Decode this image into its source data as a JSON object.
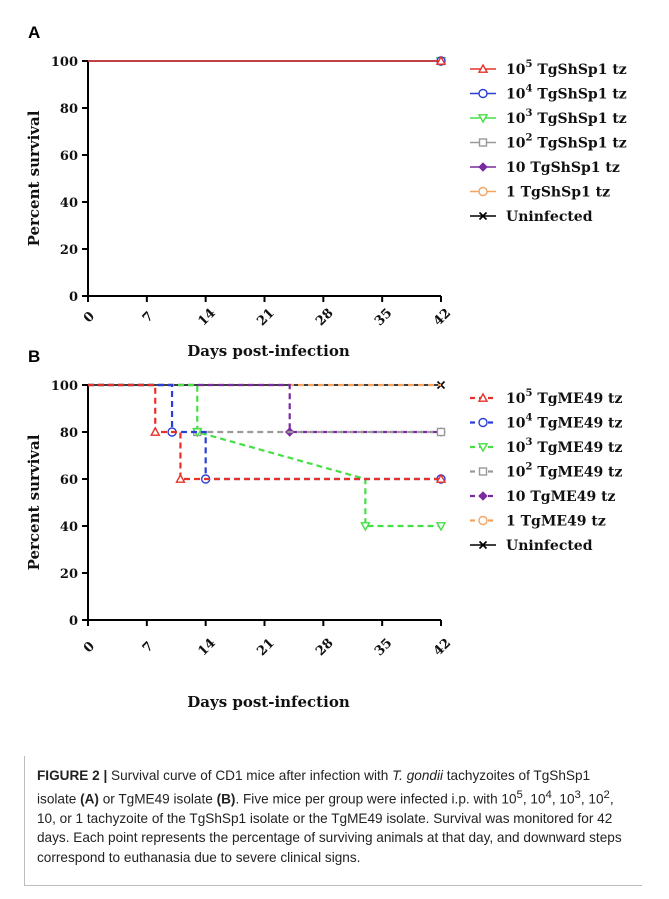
{
  "chart_data": [
    {
      "type": "line",
      "panel_label": "A",
      "xlabel": "Days post-infection",
      "ylabel": "Percent survival",
      "xlim": [
        0,
        42
      ],
      "ylim": [
        0,
        100
      ],
      "xticks": [
        0,
        7,
        14,
        21,
        28,
        35,
        42
      ],
      "yticks": [
        0,
        20,
        40,
        60,
        80,
        100
      ],
      "legend_position": "right",
      "series": [
        {
          "name": "TgShSp1 tz",
          "exp": "5",
          "color": "#e8302a",
          "marker": "triangle-up",
          "dashed": false,
          "points": [
            [
              0,
              100
            ],
            [
              42,
              100
            ]
          ],
          "steps": [],
          "markers": [
            [
              42,
              100
            ]
          ]
        },
        {
          "name": "TgShSp1 tz",
          "exp": "4",
          "color": "#2a3fd8",
          "marker": "circle",
          "dashed": false,
          "points": [
            [
              0,
              100
            ],
            [
              42,
              100
            ]
          ],
          "steps": [],
          "markers": [
            [
              42,
              100
            ]
          ]
        },
        {
          "name": "TgShSp1 tz",
          "exp": "3",
          "color": "#46e046",
          "marker": "triangle-down",
          "dashed": false,
          "points": [
            [
              0,
              100
            ],
            [
              42,
              100
            ]
          ],
          "steps": [],
          "markers": [
            [
              42,
              100
            ]
          ]
        },
        {
          "name": "TgShSp1 tz",
          "exp": "2",
          "color": "#9a9a9a",
          "marker": "square",
          "dashed": false,
          "points": [
            [
              0,
              100
            ],
            [
              42,
              100
            ]
          ],
          "steps": [],
          "markers": [
            [
              42,
              100
            ]
          ]
        },
        {
          "name": "10 TgShSp1 tz",
          "exp": "",
          "color": "#7a2aa0",
          "marker": "diamond",
          "dashed": false,
          "points": [
            [
              0,
              100
            ],
            [
              42,
              100
            ]
          ],
          "steps": [],
          "markers": [
            [
              42,
              100
            ]
          ]
        },
        {
          "name": "1 TgShSp1 tz",
          "exp": "",
          "color": "#f4a460",
          "marker": "hexagon",
          "dashed": false,
          "points": [
            [
              0,
              100
            ],
            [
              42,
              100
            ]
          ],
          "steps": [],
          "markers": [
            [
              42,
              100
            ]
          ]
        },
        {
          "name": "Uninfected",
          "exp": "",
          "color": "#000000",
          "marker": "x",
          "dashed": false,
          "points": [
            [
              0,
              100
            ],
            [
              42,
              100
            ]
          ],
          "steps": [],
          "markers": [
            [
              42,
              100
            ]
          ]
        }
      ]
    },
    {
      "type": "line",
      "panel_label": "B",
      "xlabel": "Days post-infection",
      "ylabel": "Percent survival",
      "xlim": [
        0,
        42
      ],
      "ylim": [
        0,
        100
      ],
      "xticks": [
        0,
        7,
        14,
        21,
        28,
        35,
        42
      ],
      "yticks": [
        0,
        20,
        40,
        60,
        80,
        100
      ],
      "legend_position": "right",
      "series": [
        {
          "name": "TgME49 tz",
          "exp": "5",
          "color": "#e8302a",
          "marker": "triangle-up",
          "dashed": true,
          "points": [
            [
              8,
              80
            ],
            [
              11,
              60
            ],
            [
              42,
              60
            ]
          ],
          "steps": [
            [
              8,
              100,
              80
            ],
            [
              11,
              80,
              60
            ]
          ],
          "markers": [
            [
              8,
              80
            ],
            [
              11,
              60
            ],
            [
              42,
              60
            ]
          ]
        },
        {
          "name": "TgME49 tz",
          "exp": "4",
          "color": "#2a3fd8",
          "marker": "circle",
          "dashed": true,
          "points": [
            [
              10,
              80
            ],
            [
              14,
              60
            ],
            [
              42,
              60
            ]
          ],
          "steps": [
            [
              10,
              100,
              80
            ],
            [
              14,
              80,
              60
            ]
          ],
          "markers": [
            [
              10,
              80
            ],
            [
              14,
              60
            ],
            [
              42,
              60
            ]
          ]
        },
        {
          "name": "TgME49 tz",
          "exp": "3",
          "color": "#46e046",
          "marker": "triangle-down",
          "dashed": true,
          "points": [
            [
              13,
              80
            ],
            [
              33,
              40
            ],
            [
              42,
              40
            ]
          ],
          "steps": [
            [
              13,
              100,
              80
            ],
            [
              33,
              60,
              40
            ]
          ],
          "markers": [
            [
              13,
              80
            ],
            [
              33,
              40
            ],
            [
              42,
              40
            ]
          ]
        },
        {
          "name": "TgME49 tz",
          "exp": "2",
          "color": "#9a9a9a",
          "marker": "square",
          "dashed": true,
          "points": [
            [
              13,
              80
            ],
            [
              42,
              80
            ]
          ],
          "steps": [],
          "markers": [
            [
              13,
              80
            ],
            [
              42,
              80
            ]
          ]
        },
        {
          "name": "10 TgME49 tz",
          "exp": "",
          "color": "#7a2aa0",
          "marker": "diamond",
          "dashed": true,
          "points": [
            [
              24,
              100
            ],
            [
              24,
              80
            ],
            [
              42,
              80
            ]
          ],
          "steps": [
            [
              24,
              100,
              80
            ]
          ],
          "markers": [
            [
              24,
              80
            ],
            [
              42,
              80
            ]
          ]
        },
        {
          "name": "1 TgME49 tz",
          "exp": "",
          "color": "#f4a460",
          "marker": "hexagon",
          "dashed": true,
          "points": [
            [
              0,
              100
            ],
            [
              42,
              100
            ]
          ],
          "steps": [],
          "markers": []
        },
        {
          "name": "Uninfected",
          "exp": "",
          "color": "#000000",
          "marker": "x",
          "dashed": false,
          "points": [
            [
              0,
              100
            ],
            [
              42,
              100
            ]
          ],
          "steps": [],
          "markers": [
            [
              42,
              100
            ]
          ]
        }
      ]
    }
  ],
  "caption": {
    "head": "FIGURE 2 |",
    "t1": " Survival curve of CD1 mice after infection with ",
    "italic": "T. gondii",
    "t2": " tachyzoites of TgShSp1 isolate ",
    "b1": "(A)",
    "t3": " or TgME49 isolate ",
    "b2": "(B)",
    "t4": ". Five mice per group were infected i.p. with 10",
    "s5": "5",
    "t5": ", 10",
    "s4": "4",
    "t6": ", 10",
    "s3": "3",
    "t7": ", 10",
    "s2": "2",
    "t8": ", 10, or 1 tachyzoite of the TgShSp1 isolate or the TgME49 isolate. Survival was monitored for 42 days. Each point represents the percentage of surviving animals at that day, and downward steps correspond to euthanasia due to severe clinical signs."
  }
}
